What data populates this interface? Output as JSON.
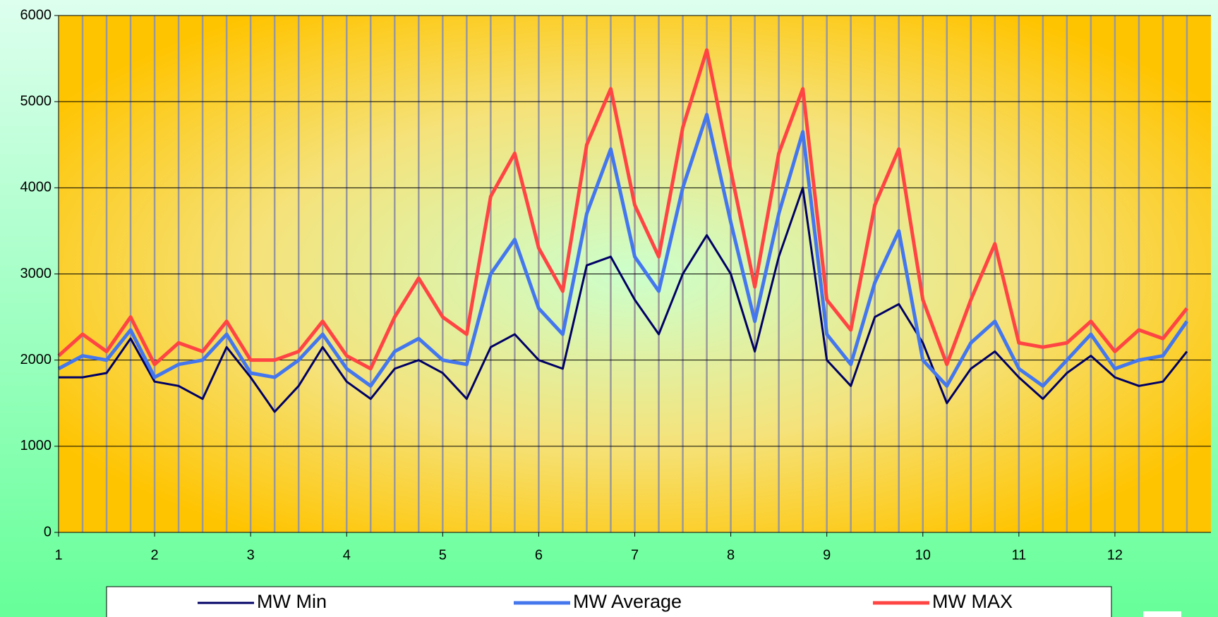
{
  "chart_data": {
    "type": "line",
    "x": [
      1,
      1.25,
      1.5,
      1.75,
      2,
      2.25,
      2.5,
      2.75,
      3,
      3.25,
      3.5,
      3.75,
      4,
      4.25,
      4.5,
      4.75,
      5,
      5.25,
      5.5,
      5.75,
      6,
      6.25,
      6.5,
      6.75,
      7,
      7.25,
      7.5,
      7.75,
      8,
      8.25,
      8.5,
      8.75,
      9,
      9.25,
      9.5,
      9.75,
      10,
      10.25,
      10.5,
      10.75,
      11,
      11.25,
      11.5,
      11.75,
      12,
      12.25,
      12.5,
      12.75
    ],
    "series": [
      {
        "name": "MW Min",
        "color": "#000066",
        "values": [
          1800,
          1800,
          1850,
          2250,
          1750,
          1700,
          1550,
          2150,
          1800,
          1400,
          1700,
          2150,
          1750,
          1550,
          1900,
          2000,
          1850,
          1550,
          2150,
          2300,
          2000,
          1900,
          3100,
          3200,
          2700,
          2300,
          3000,
          3450,
          3000,
          2100,
          3200,
          4000,
          2000,
          1700,
          2500,
          2650,
          2200,
          1500,
          1900,
          2100,
          1800,
          1550,
          1850,
          2050,
          1800,
          1700,
          1750,
          2100
        ]
      },
      {
        "name": "MW Average",
        "color": "#4477ee",
        "values": [
          1900,
          2050,
          2000,
          2350,
          1800,
          1950,
          2000,
          2300,
          1850,
          1800,
          2000,
          2300,
          1900,
          1700,
          2100,
          2250,
          2000,
          1950,
          3000,
          3400,
          2600,
          2300,
          3700,
          4450,
          3200,
          2800,
          4000,
          4850,
          3600,
          2450,
          3700,
          4650,
          2300,
          1950,
          2900,
          3500,
          2000,
          1700,
          2200,
          2450,
          1900,
          1700,
          2000,
          2300,
          1900,
          2000,
          2050,
          2450
        ]
      },
      {
        "name": "MW MAX",
        "color": "#ff4444",
        "values": [
          2050,
          2300,
          2100,
          2500,
          1950,
          2200,
          2100,
          2450,
          2000,
          2000,
          2100,
          2450,
          2050,
          1900,
          2500,
          2950,
          2500,
          2300,
          3900,
          4400,
          3300,
          2800,
          4500,
          5150,
          3800,
          3200,
          4700,
          5600,
          4200,
          2850,
          4400,
          5150,
          2700,
          2350,
          3800,
          4450,
          2700,
          1950,
          2700,
          3350,
          2200,
          2150,
          2200,
          2450,
          2100,
          2350,
          2250,
          2600
        ]
      }
    ],
    "xlim": [
      1,
      13
    ],
    "xticks": [
      1,
      2,
      3,
      4,
      5,
      6,
      7,
      8,
      9,
      10,
      11,
      12
    ],
    "ylim": [
      0,
      6000
    ],
    "yticks": [
      0,
      1000,
      2000,
      3000,
      4000,
      5000,
      6000
    ],
    "grid": true,
    "legend": "bottom"
  }
}
